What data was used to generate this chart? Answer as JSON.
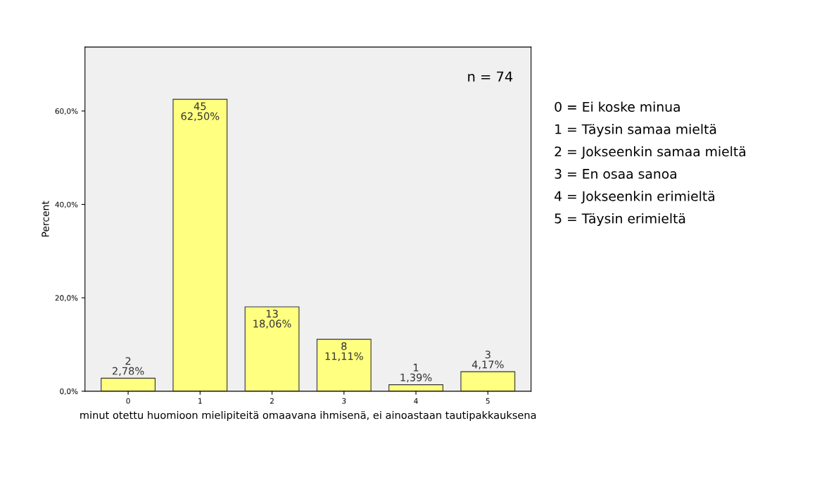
{
  "chart_data": {
    "type": "bar",
    "xlabel": "minut otettu huomioon mielipiteitä omaavana ihmisenä, ei ainoastaan tautipakkauksena",
    "ylabel": "Percent",
    "categories": [
      "0",
      "1",
      "2",
      "3",
      "4",
      "5"
    ],
    "values": [
      2.78,
      62.5,
      18.06,
      11.11,
      1.39,
      4.17
    ],
    "value_labels": [
      "2\n2,78%",
      "45\n62,50%",
      "13\n18,06%",
      "8\n11,11%",
      "1\n1,39%",
      "3\n4,17%"
    ],
    "color": "#ffff80",
    "ylim": [
      0,
      73.7
    ],
    "yticks": [
      {
        "value": 0,
        "label": "0,0%"
      },
      {
        "value": 20,
        "label": "20,0%"
      },
      {
        "value": 40,
        "label": "40,0%"
      },
      {
        "value": 60,
        "label": "60,0%"
      }
    ],
    "grid": false,
    "annotations": [
      "n = 74",
      "0 = Ei koske minua",
      "1 = Täysin samaa mieltä",
      "2 = Jokseenkin samaa mieltä",
      "3 = En osaa sanoa",
      "4 = Jokseenkin erimieltä",
      "5 = Täysin erimieltä"
    ]
  }
}
